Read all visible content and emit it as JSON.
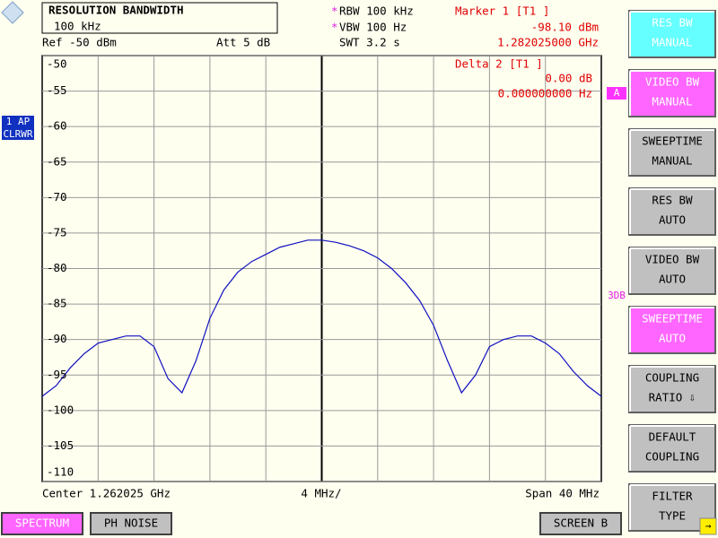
{
  "header": {
    "box_title": "RESOLUTION BANDWIDTH",
    "box_value": "100 kHz",
    "rbw": "RBW 100 kHz",
    "vbw": "VBW 100 Hz",
    "swt": "SWT 3.2 s",
    "ref": "Ref -50 dBm",
    "att": "Att  5 dB",
    "marker_title": "Marker 1 [T1 ]",
    "marker_level": "-98.10 dBm",
    "marker_freq": "1.282025000 GHz"
  },
  "plot_labels": {
    "delta_title": "Delta 2 [T1 ]",
    "delta_level": "0.00 dB",
    "delta_freq": "0.000000000 Hz",
    "trace_mode_1": "1 AP",
    "trace_mode_2": "CLRWR",
    "side_a": "A",
    "side_3db": "3DB"
  },
  "footer": {
    "center": "Center 1.262025 GHz",
    "div": "4 MHz/",
    "span": "Span 40 MHz"
  },
  "softkeys": [
    {
      "lines": [
        "RES BW",
        "MANUAL"
      ],
      "color": "#66ffff"
    },
    {
      "lines": [
        "VIDEO BW",
        "MANUAL"
      ],
      "color": "#ff66ff"
    },
    {
      "lines": [
        "SWEEPTIME",
        "MANUAL"
      ],
      "color": "#c0c0c0"
    },
    {
      "lines": [
        "RES BW",
        "AUTO"
      ],
      "color": "#c0c0c0"
    },
    {
      "lines": [
        "VIDEO BW",
        "AUTO"
      ],
      "color": "#c0c0c0"
    },
    {
      "lines": [
        "SWEEPTIME",
        "AUTO"
      ],
      "color": "#ff66ff"
    },
    {
      "lines": [
        "COUPLING",
        "RATIO ⇩"
      ],
      "color": "#c0c0c0"
    },
    {
      "lines": [
        "DEFAULT",
        "COUPLING"
      ],
      "color": "#c0c0c0"
    },
    {
      "lines": [
        "FILTER",
        "TYPE"
      ],
      "color": "#c0c0c0"
    }
  ],
  "bottom_buttons": [
    {
      "label": "SPECTRUM",
      "color": "#ff66ff"
    },
    {
      "label": "PH NOISE",
      "color": "#c0c0c0"
    },
    {
      "label": "SCREEN B",
      "color": "#c0c0c0"
    }
  ],
  "chart_data": {
    "type": "line",
    "color": "#1010c0",
    "x": [
      1.242025,
      1.243025,
      1.244025,
      1.245025,
      1.246025,
      1.247025,
      1.248025,
      1.249025,
      1.250025,
      1.251025,
      1.252025,
      1.253025,
      1.254025,
      1.255025,
      1.256025,
      1.257025,
      1.258025,
      1.259025,
      1.260025,
      1.261025,
      1.262025,
      1.263025,
      1.264025,
      1.265025,
      1.266025,
      1.267025,
      1.268025,
      1.269025,
      1.270025,
      1.271025,
      1.272025,
      1.273025,
      1.274025,
      1.275025,
      1.276025,
      1.277025,
      1.278025,
      1.279025,
      1.280025,
      1.281025,
      1.282025
    ],
    "values": [
      -98,
      -96.5,
      -94,
      -92,
      -90.5,
      -90,
      -89.5,
      -89.5,
      -91,
      -95.5,
      -97.5,
      -93,
      -87,
      -83,
      -80.5,
      -79,
      -78,
      -77,
      -76.5,
      -76,
      -76,
      -76.3,
      -76.8,
      -77.5,
      -78.5,
      -80,
      -82,
      -84.5,
      -88,
      -93,
      -97.5,
      -95,
      -91,
      -90,
      -89.5,
      -89.5,
      -90.5,
      -92,
      -94.5,
      -96.5,
      -98
    ],
    "xlim": [
      1.242025,
      1.282025
    ],
    "ylim": [
      -110,
      -50
    ],
    "yticks": [
      -50,
      -55,
      -60,
      -65,
      -70,
      -75,
      -80,
      -85,
      -90,
      -95,
      -100,
      -105,
      -110
    ],
    "grid": true
  }
}
